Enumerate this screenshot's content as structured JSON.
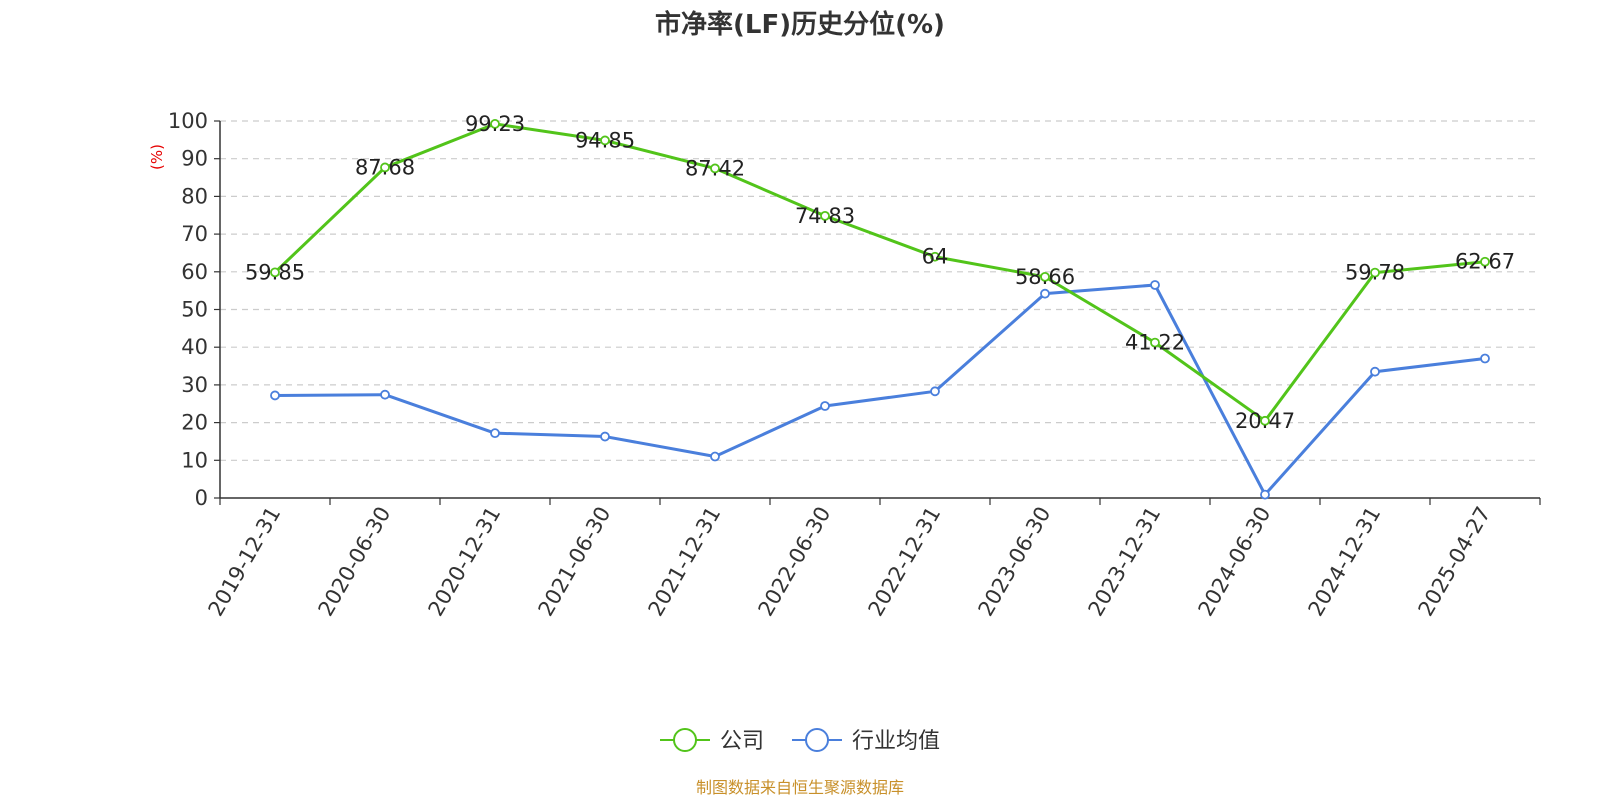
{
  "chart_data": {
    "type": "line",
    "title": "市净率(LF)历史分位(%)",
    "y_unit": "(%)",
    "xlabel": "",
    "ylabel": "",
    "categories": [
      "2019-12-31",
      "2020-06-30",
      "2020-12-31",
      "2021-06-30",
      "2021-12-31",
      "2022-06-30",
      "2022-12-31",
      "2023-06-30",
      "2023-12-31",
      "2024-06-30",
      "2024-12-31",
      "2025-04-27"
    ],
    "ylim": [
      0,
      100
    ],
    "yticks": [
      0,
      10,
      20,
      30,
      40,
      50,
      60,
      70,
      80,
      90,
      100
    ],
    "grid": "horizontal-dashed",
    "legend_position": "bottom-center",
    "series": [
      {
        "name": "公司",
        "color": "#52c41a",
        "values": [
          59.85,
          87.68,
          99.23,
          94.85,
          87.42,
          74.83,
          64,
          58.66,
          41.22,
          20.47,
          59.78,
          62.67
        ],
        "labels": [
          "59.85",
          "87.68",
          "99.23",
          "94.85",
          "87.42",
          "74.83",
          "64",
          "58.66",
          "41.22",
          "20.47",
          "59.78",
          "62.67"
        ]
      },
      {
        "name": "行业均值",
        "color": "#4a7fdc",
        "values": [
          27.2,
          27.4,
          17.2,
          16.3,
          11.0,
          24.4,
          28.3,
          54.2,
          56.5,
          0.9,
          33.5,
          37.0
        ]
      }
    ],
    "source": "制图数据来自恒生聚源数据库"
  }
}
